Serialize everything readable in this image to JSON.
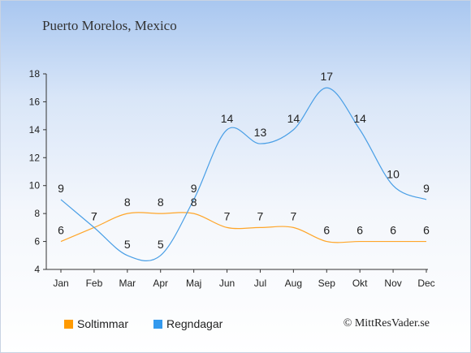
{
  "page": {
    "title": "Puerto Morelos, Mexico",
    "credit": "© MittResVader.se"
  },
  "legend": {
    "items": [
      {
        "label": "Soltimmar",
        "color": "#ff9a00"
      },
      {
        "label": "Regndagar",
        "color": "#3399ee"
      }
    ]
  },
  "chart_data": {
    "type": "line",
    "categories": [
      "Jan",
      "Feb",
      "Mar",
      "Apr",
      "Maj",
      "Jun",
      "Jul",
      "Aug",
      "Sep",
      "Okt",
      "Nov",
      "Dec"
    ],
    "series": [
      {
        "name": "Soltimmar",
        "color": "#ffa629",
        "values": [
          6,
          7,
          8,
          8,
          8,
          7,
          7,
          7,
          6,
          6,
          6,
          6
        ]
      },
      {
        "name": "Regndagar",
        "color": "#4a9fe6",
        "values": [
          9,
          7,
          5,
          5,
          9,
          14,
          13,
          14,
          17,
          14,
          10,
          9
        ]
      }
    ],
    "ylim": [
      4,
      18
    ],
    "yticks": [
      4,
      6,
      8,
      10,
      12,
      14,
      16,
      18
    ],
    "grid": false,
    "legend_position": "bottom-left"
  }
}
